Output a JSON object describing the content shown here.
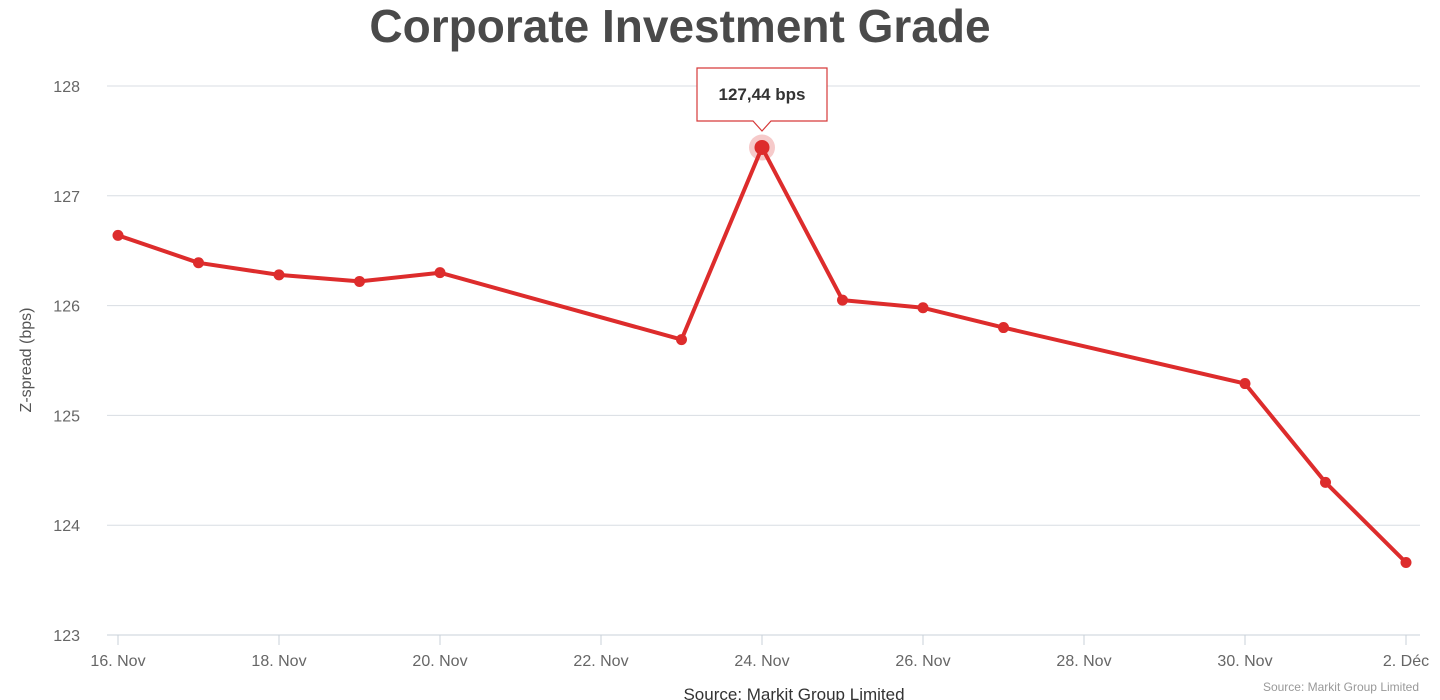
{
  "chart_data": {
    "type": "line",
    "title": "Corporate Investment Grade",
    "ylabel": "Z-spread (bps)",
    "xlabel": "Source: Markit Group Limited",
    "credits": "Source: Markit Group Limited",
    "ylim": [
      123,
      128
    ],
    "y_ticks": [
      "123",
      "124",
      "125",
      "126",
      "127",
      "128"
    ],
    "x_ticks": [
      "16. Nov",
      "18. Nov",
      "20. Nov",
      "22. Nov",
      "24. Nov",
      "26. Nov",
      "28. Nov",
      "30. Nov",
      "2. Déc"
    ],
    "series": [
      {
        "color": "#dd2c2c",
        "points": [
          {
            "x": "16 Nov",
            "y": 126.64
          },
          {
            "x": "17 Nov",
            "y": 126.39
          },
          {
            "x": "18 Nov",
            "y": 126.28
          },
          {
            "x": "19 Nov",
            "y": 126.22
          },
          {
            "x": "20 Nov",
            "y": 126.3
          },
          {
            "x": "23 Nov",
            "y": 125.69
          },
          {
            "x": "24 Nov",
            "y": 127.44
          },
          {
            "x": "25 Nov",
            "y": 126.05
          },
          {
            "x": "26 Nov",
            "y": 125.98
          },
          {
            "x": "27 Nov",
            "y": 125.8
          },
          {
            "x": "30 Nov",
            "y": 125.29
          },
          {
            "x": "1 Déc",
            "y": 124.39
          },
          {
            "x": "2 Déc",
            "y": 123.66
          }
        ]
      }
    ],
    "tooltip": {
      "text": "127,44 bps",
      "point_index": 6
    },
    "grid": true,
    "legend": "none"
  }
}
